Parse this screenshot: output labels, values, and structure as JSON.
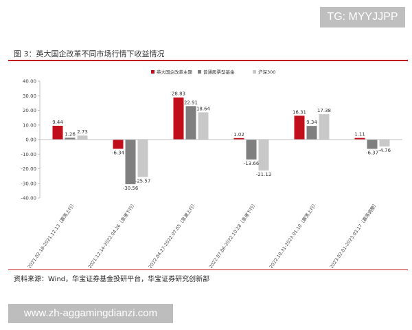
{
  "watermark_top": "TG: MYYJJPP",
  "figure_title": "图 3：英大国企改革不同市场行情下收益情况",
  "source_note": "资料来源：Wind，华宝证券基金投研平台，华宝证券研究创新部",
  "watermark_bottom": "www.zh-aggamingdianzi.com",
  "colors": {
    "rule": "#c0171d"
  },
  "chart_data": {
    "type": "bar",
    "ylim": [
      -40,
      40
    ],
    "yticks": [
      "40.00",
      "30.00",
      "20.00",
      "10.00",
      "0.00",
      "-10.00",
      "-20.00",
      "-30.00",
      "-40.00"
    ],
    "ytick_values": [
      40,
      30,
      20,
      10,
      0,
      -10,
      -20,
      -30,
      -40
    ],
    "grid": false,
    "legend_position": "top-right",
    "categories": [
      "2021.02.18-2021.12.13（震荡上行）",
      "2021.12.14-2022.04.26（急速下行）",
      "2022.04.27-2022.07.05（急速上行）",
      "2022.07.06-2022.10.28（急速下行）",
      "2022.10.31-2023.01.10（震荡上行）",
      "2023.02.01-2023.03.17（震荡调整）"
    ],
    "series": [
      {
        "name": "英大国企改革主题",
        "color": "#c00e1a",
        "values": [
          9.44,
          -6.34,
          28.83,
          1.02,
          16.31,
          1.11
        ],
        "labels": [
          "9.44",
          "-6.34",
          "28.83",
          "1.02",
          "16.31",
          "1.11"
        ]
      },
      {
        "name": "普通股票型基金",
        "color": "#7f7f7f",
        "values": [
          1.26,
          -30.56,
          22.91,
          -13.66,
          9.34,
          -6.37
        ],
        "labels": [
          "1.26",
          "-30.56",
          "22.91",
          "-13.66",
          "9.34",
          "-6.37"
        ]
      },
      {
        "name": "沪深300",
        "color": "#c8c8c8",
        "values": [
          2.73,
          -25.57,
          18.64,
          -21.12,
          17.38,
          -4.76
        ],
        "labels": [
          "2.73",
          "-25.57",
          "18.64",
          "-21.12",
          "17.38",
          "-4.76"
        ]
      }
    ]
  }
}
